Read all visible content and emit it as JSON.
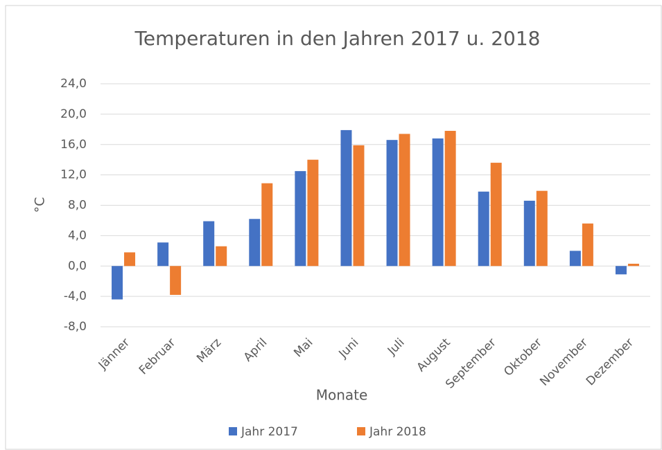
{
  "chart_data": {
    "type": "bar",
    "title": "Temperaturen  in den Jahren 2017 u. 2018",
    "x_label": "Monate",
    "y_label": "°C",
    "categories": [
      "Jänner",
      "Februar",
      "März",
      "April",
      "Mai",
      "Juni",
      "Juli",
      "August",
      "September",
      "Oktober",
      "November",
      "Dezember"
    ],
    "series": [
      {
        "name": "Jahr 2017",
        "color": "#4472c4",
        "values": [
          -4.4,
          3.1,
          5.9,
          6.2,
          12.5,
          17.9,
          16.6,
          16.8,
          9.8,
          8.6,
          2.0,
          -1.1
        ]
      },
      {
        "name": "Jahr 2018",
        "color": "#ed7d31",
        "values": [
          1.8,
          -3.8,
          2.6,
          10.9,
          14.0,
          15.9,
          17.4,
          17.8,
          13.6,
          9.9,
          5.6,
          0.3
        ]
      }
    ],
    "ylim": [
      -8,
      24
    ],
    "yticks": [
      {
        "value": -8,
        "label": "-8,0"
      },
      {
        "value": -4,
        "label": "-4,0"
      },
      {
        "value": 0,
        "label": "0,0"
      },
      {
        "value": 4,
        "label": "4,0"
      },
      {
        "value": 8,
        "label": "8,0"
      },
      {
        "value": 12,
        "label": "12,0"
      },
      {
        "value": 16,
        "label": "16,0"
      },
      {
        "value": 20,
        "label": "20,0"
      },
      {
        "value": 24,
        "label": "24,0"
      }
    ],
    "grid": true,
    "legend": "bottom"
  }
}
